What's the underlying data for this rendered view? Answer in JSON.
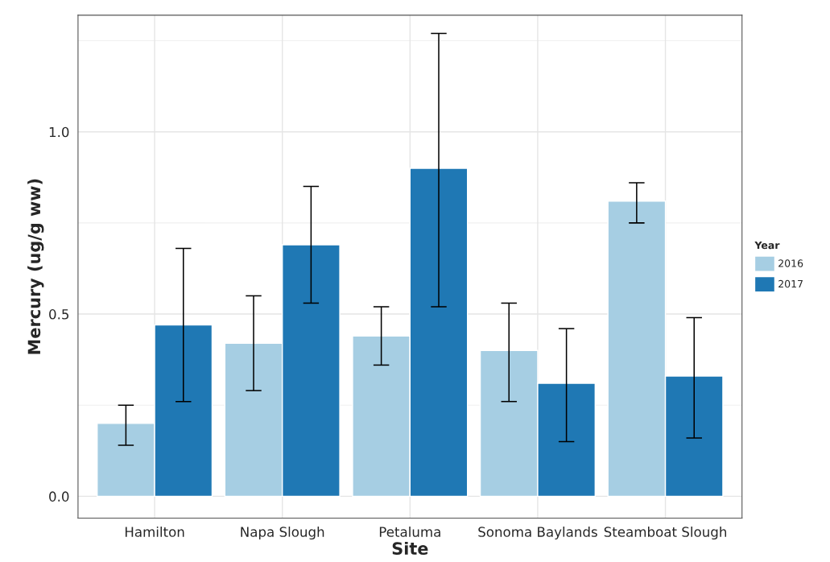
{
  "chart_data": {
    "type": "bar",
    "xlabel": "Site",
    "ylabel": "Mercury (ug/g ww)",
    "legend_title": "Year",
    "legend": "right",
    "categories": [
      "Hamilton",
      "Napa Slough",
      "Petaluma",
      "Sonoma Baylands",
      "Steamboat Slough"
    ],
    "series": [
      {
        "name": "2016",
        "color": "#a6cee3",
        "values": [
          0.2,
          0.42,
          0.44,
          0.4,
          0.81
        ],
        "errors": [
          [
            0.14,
            0.25
          ],
          [
            0.29,
            0.55
          ],
          [
            0.36,
            0.52
          ],
          [
            0.26,
            0.53
          ],
          [
            0.75,
            0.86
          ]
        ]
      },
      {
        "name": "2017",
        "color": "#1f78b4",
        "values": [
          0.47,
          0.69,
          0.9,
          0.31,
          0.33
        ],
        "errors": [
          [
            0.26,
            0.68
          ],
          [
            0.53,
            0.85
          ],
          [
            0.52,
            1.27
          ],
          [
            0.15,
            0.46
          ],
          [
            0.16,
            0.49
          ]
        ]
      }
    ],
    "ylim": [
      -0.06,
      1.32
    ],
    "yticks": [
      {
        "value": 0,
        "label": "0.0"
      },
      {
        "value": 0.5,
        "label": "0.5"
      },
      {
        "value": 1,
        "label": "1.0"
      }
    ],
    "grid": true
  }
}
